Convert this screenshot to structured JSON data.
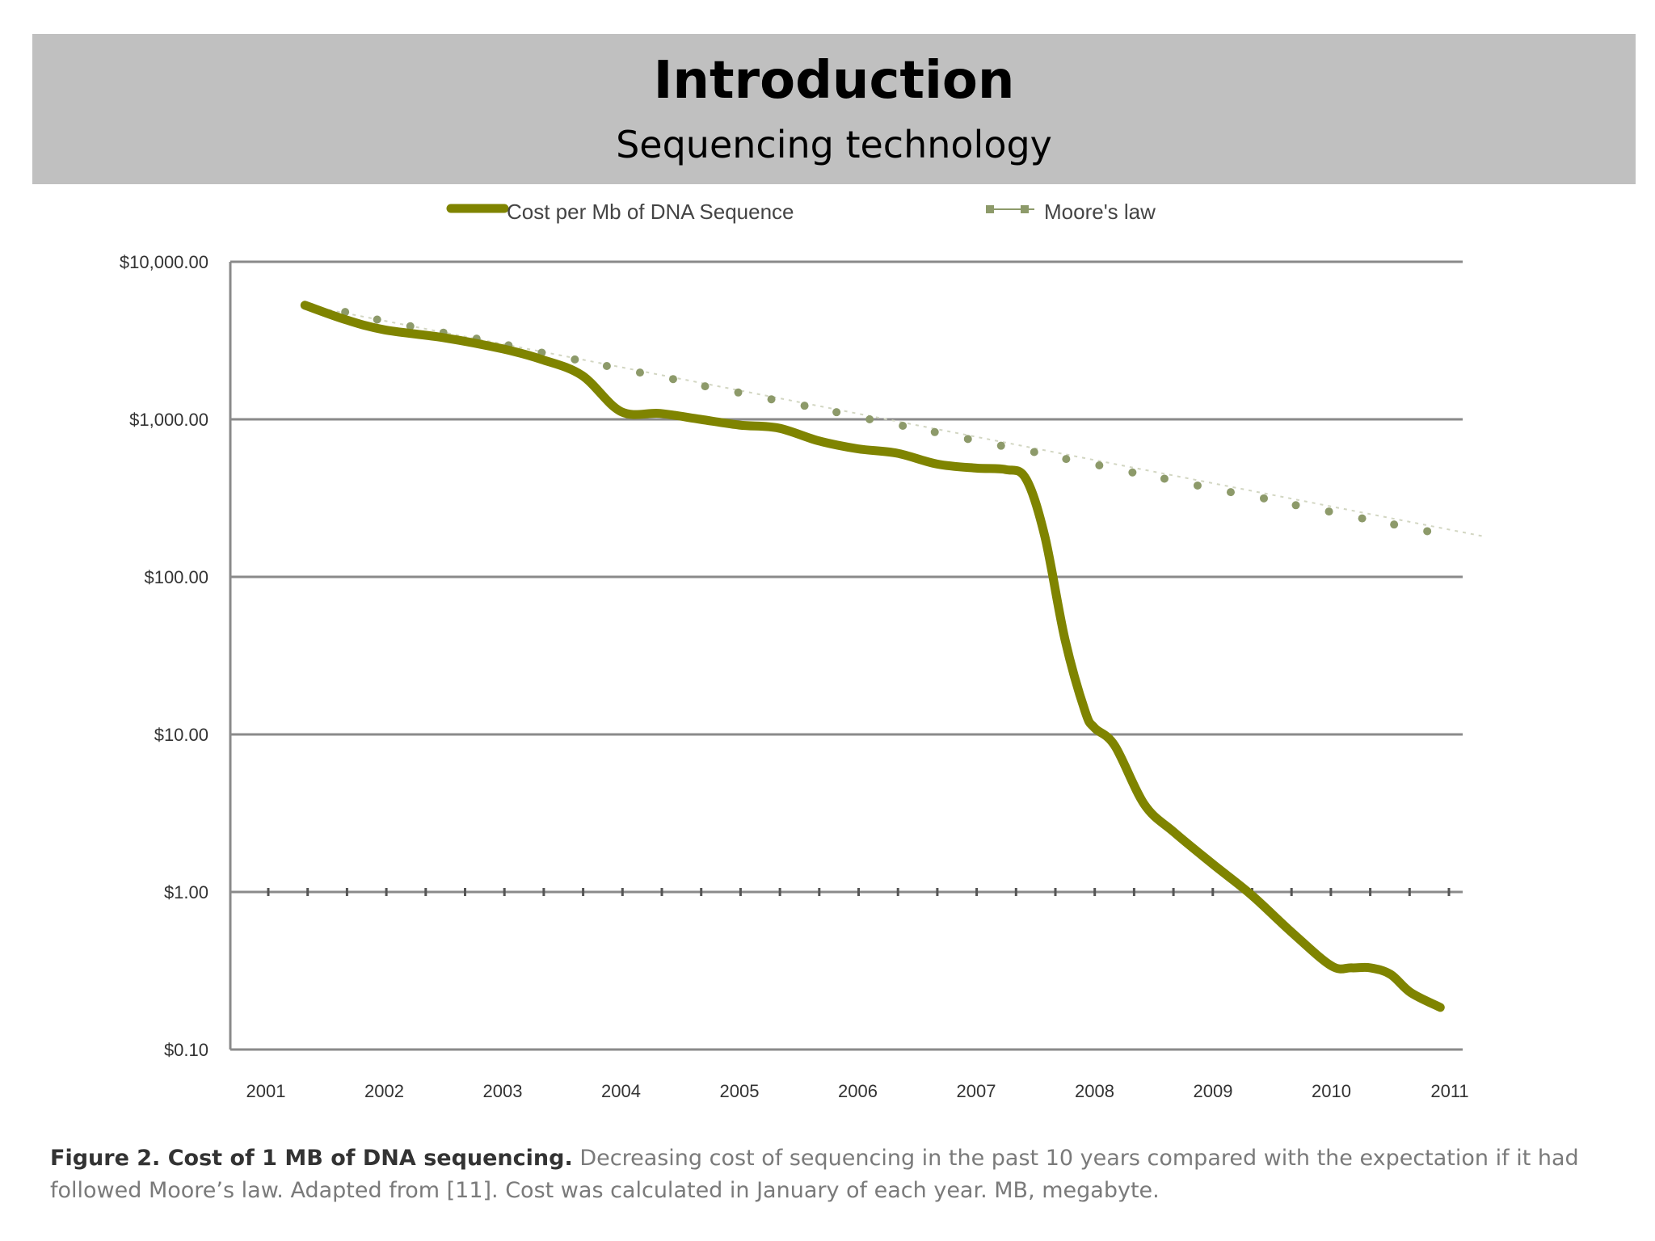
{
  "slide": {
    "title": "Introduction",
    "subtitle": "Sequencing technology"
  },
  "caption": {
    "bold": "Figure 2. Cost of 1 MB of DNA sequencing.",
    "text": "Decreasing cost of sequencing in the past 10 years compared with the expectation if it had followed Moore’s law. Adapted from [11]. Cost was calculated in January of each year. MB, megabyte."
  },
  "chart_data": {
    "type": "line",
    "title": "",
    "xlabel": "",
    "ylabel": "",
    "yscale": "log",
    "ylim": [
      0.1,
      10000
    ],
    "xlim": [
      2001,
      2011.4
    ],
    "x_ticks": [
      "2001",
      "2002",
      "2003",
      "2004",
      "2005",
      "2006",
      "2007",
      "2008",
      "2009",
      "2010",
      "2011"
    ],
    "y_ticks": [
      {
        "value": 10000,
        "label": "$10,000.00"
      },
      {
        "value": 1000,
        "label": "$1,000.00"
      },
      {
        "value": 100,
        "label": "$100.00"
      },
      {
        "value": 10,
        "label": "$10.00"
      },
      {
        "value": 1,
        "label": "$1.00"
      },
      {
        "value": 0.1,
        "label": "$0.10"
      }
    ],
    "grid": true,
    "legend": "top",
    "series": [
      {
        "name": "Cost per Mb of DNA Sequence",
        "color": "#7f8400",
        "style": "thick-line",
        "points": [
          [
            2001.33,
            5300
          ],
          [
            2001.67,
            4300
          ],
          [
            2002.0,
            3700
          ],
          [
            2002.5,
            3300
          ],
          [
            2003.0,
            2800
          ],
          [
            2003.33,
            2400
          ],
          [
            2003.67,
            1900
          ],
          [
            2004.0,
            1120
          ],
          [
            2004.33,
            1090
          ],
          [
            2004.67,
            1000
          ],
          [
            2005.0,
            920
          ],
          [
            2005.33,
            880
          ],
          [
            2005.67,
            730
          ],
          [
            2006.0,
            650
          ],
          [
            2006.33,
            610
          ],
          [
            2006.67,
            520
          ],
          [
            2007.0,
            490
          ],
          [
            2007.25,
            480
          ],
          [
            2007.42,
            420
          ],
          [
            2007.58,
            180
          ],
          [
            2007.75,
            40
          ],
          [
            2007.92,
            14
          ],
          [
            2008.0,
            11
          ],
          [
            2008.17,
            8.5
          ],
          [
            2008.42,
            3.6
          ],
          [
            2008.67,
            2.4
          ],
          [
            2009.0,
            1.5
          ],
          [
            2009.33,
            0.95
          ],
          [
            2009.67,
            0.55
          ],
          [
            2010.0,
            0.34
          ],
          [
            2010.17,
            0.33
          ],
          [
            2010.33,
            0.33
          ],
          [
            2010.5,
            0.3
          ],
          [
            2010.67,
            0.23
          ],
          [
            2010.92,
            0.185
          ]
        ]
      },
      {
        "name": "Moore's law",
        "color": "#8d9a6a",
        "style": "dotted-markers",
        "points": [
          [
            2001.33,
            5300
          ],
          [
            2001.67,
            4800
          ],
          [
            2001.94,
            4300
          ],
          [
            2002.22,
            3900
          ],
          [
            2002.5,
            3550
          ],
          [
            2002.78,
            3250
          ],
          [
            2003.05,
            2950
          ],
          [
            2003.33,
            2650
          ],
          [
            2003.61,
            2400
          ],
          [
            2003.88,
            2180
          ],
          [
            2004.16,
            1980
          ],
          [
            2004.44,
            1800
          ],
          [
            2004.71,
            1620
          ],
          [
            2004.99,
            1480
          ],
          [
            2005.27,
            1340
          ],
          [
            2005.55,
            1220
          ],
          [
            2005.82,
            1110
          ],
          [
            2006.1,
            1000
          ],
          [
            2006.38,
            910
          ],
          [
            2006.65,
            830
          ],
          [
            2006.93,
            750
          ],
          [
            2007.21,
            680
          ],
          [
            2007.49,
            620
          ],
          [
            2007.76,
            560
          ],
          [
            2008.04,
            510
          ],
          [
            2008.32,
            460
          ],
          [
            2008.59,
            420
          ],
          [
            2008.87,
            380
          ],
          [
            2009.15,
            345
          ],
          [
            2009.43,
            315
          ],
          [
            2009.7,
            285
          ],
          [
            2009.98,
            260
          ],
          [
            2010.26,
            235
          ],
          [
            2010.53,
            215
          ],
          [
            2010.81,
            195
          ]
        ]
      }
    ]
  }
}
